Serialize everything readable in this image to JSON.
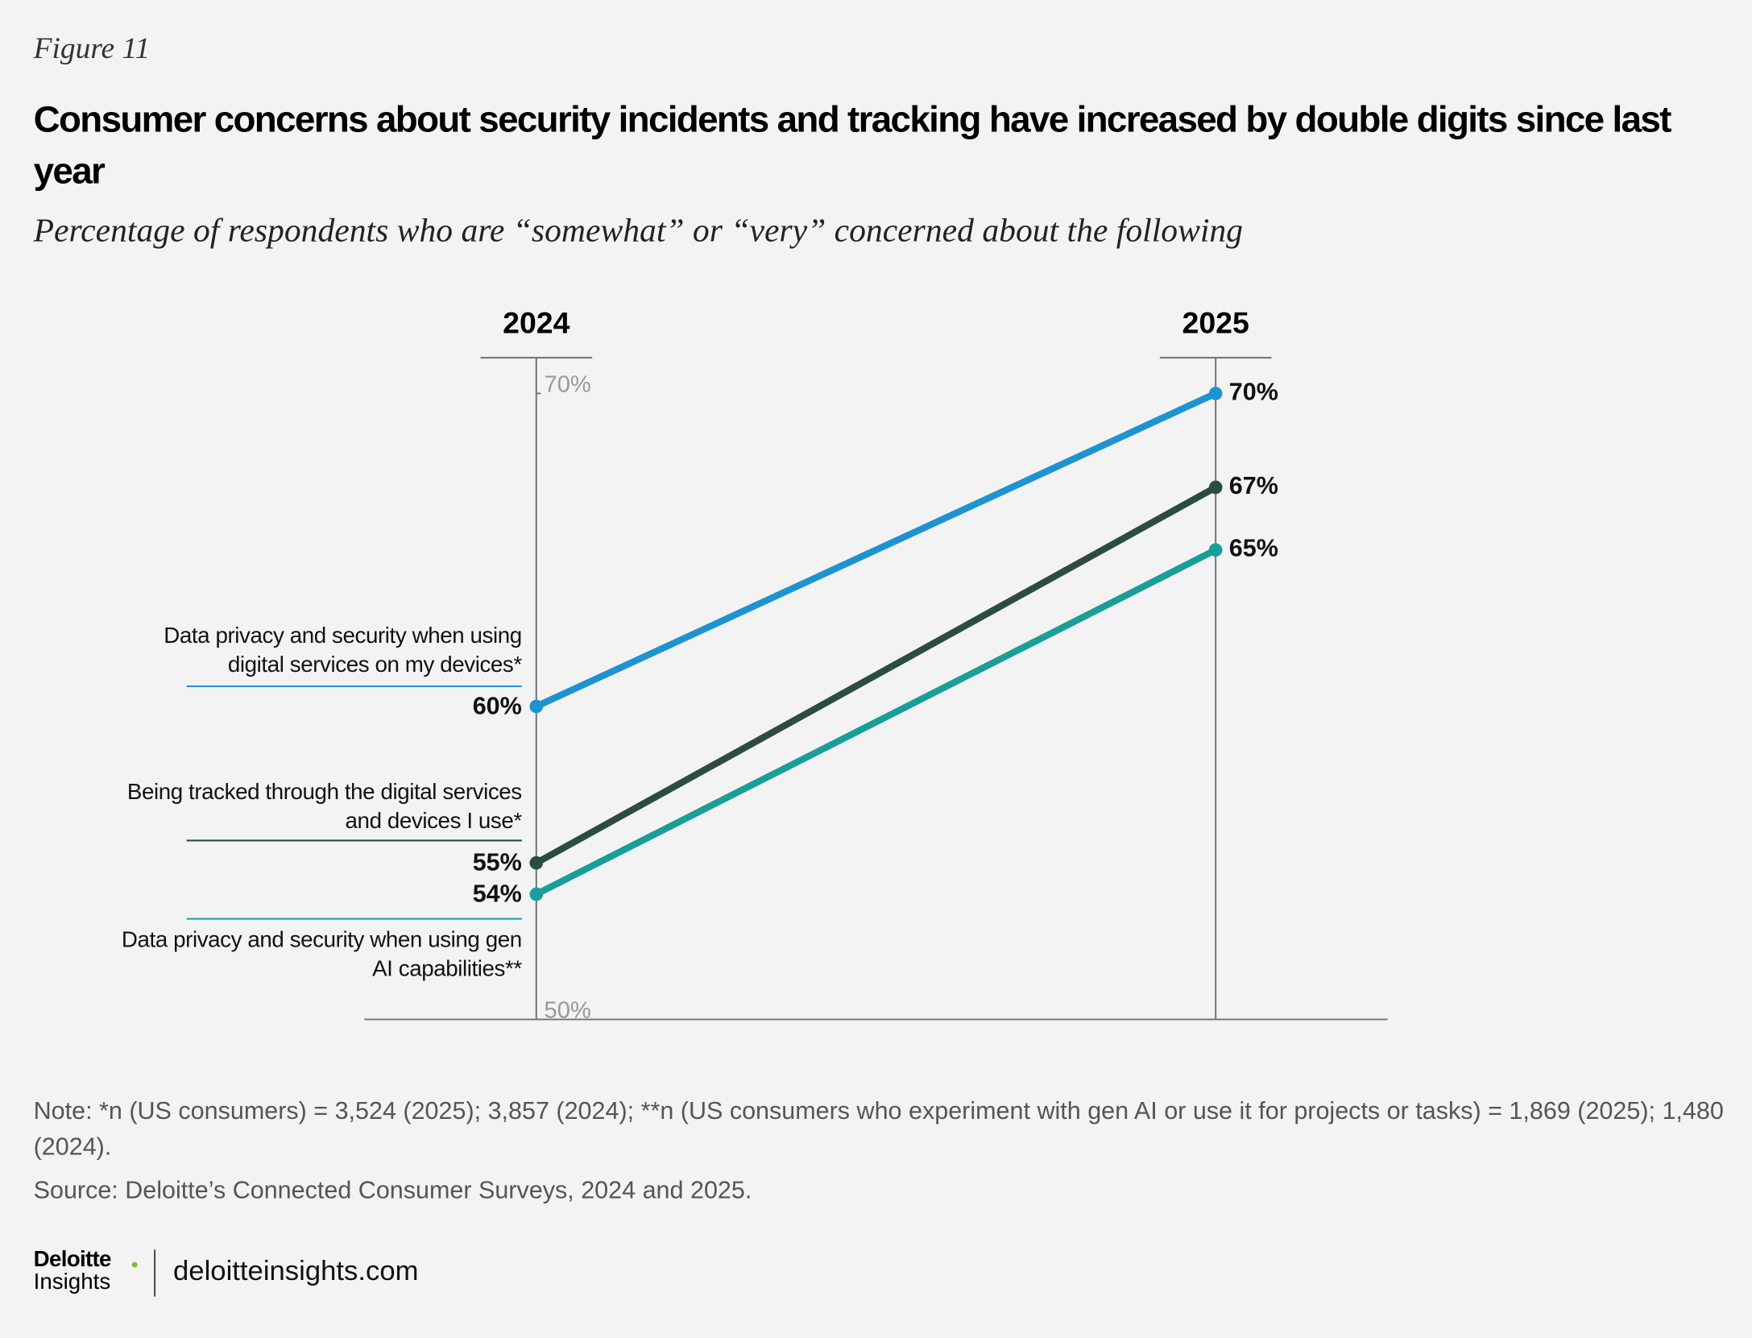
{
  "chart_data": {
    "type": "slope",
    "figure_label": "Figure 11",
    "title": "Consumer concerns about security incidents and tracking have increased by double digits since last year",
    "subtitle": "Percentage of respondents who are “somewhat” or “very” concerned about the following",
    "categories": [
      "2024",
      "2025"
    ],
    "series": [
      {
        "name": "Data privacy and security when using digital services on my devices*",
        "color": "#1f93d1",
        "values": [
          60,
          70
        ],
        "value_labels": [
          "60%",
          "70%"
        ]
      },
      {
        "name": "Being tracked through the digital services and devices I use*",
        "color": "#2c4c40",
        "values": [
          55,
          67
        ],
        "value_labels": [
          "55%",
          "67%"
        ]
      },
      {
        "name": "Data privacy and security when using gen AI capabilities**",
        "color": "#1a9e9a",
        "values": [
          54,
          65
        ],
        "value_labels": [
          "54%",
          "65%"
        ]
      }
    ],
    "ylim": [
      50,
      70
    ],
    "yticks": [
      {
        "value": 50,
        "label": "50%"
      },
      {
        "value": 70,
        "label": "70%"
      }
    ],
    "note": "Note: *n (US consumers) = 3,524 (2025); 3,857 (2024); **n (US consumers who experiment with gen AI or use it for projects or tasks) = 1,869 (2025); 1,480 (2024).",
    "source": "Source: Deloitte’s Connected Consumer Surveys, 2024 and 2025.",
    "logo_word": "Deloitte",
    "logo_sub": "Insights",
    "site": "deloitteinsights.com"
  }
}
